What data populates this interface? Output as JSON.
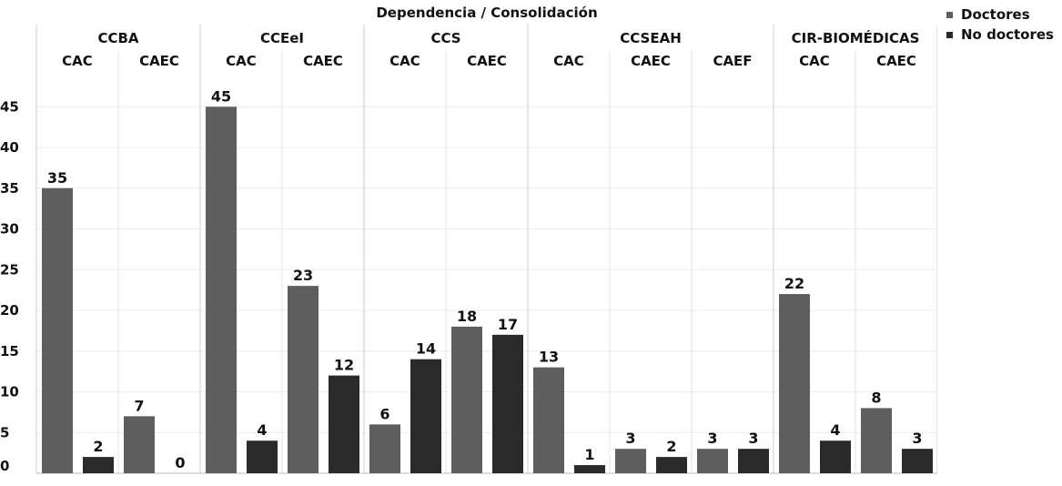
{
  "chart_data": {
    "type": "bar",
    "title": "Dependencia / Consolidación",
    "xlabel": "Dependencia / Consolidación",
    "ylabel": "",
    "ylim": [
      0,
      50
    ],
    "yticks": [
      0,
      5,
      10,
      15,
      20,
      25,
      30,
      35,
      40,
      45
    ],
    "groups": [
      {
        "name": "CCBA",
        "subgroups": [
          {
            "label": "CAC",
            "values": [
              35,
              2
            ]
          },
          {
            "label": "CAEC",
            "values": [
              7,
              0
            ]
          }
        ]
      },
      {
        "name": "CCEeI",
        "subgroups": [
          {
            "label": "CAC",
            "values": [
              45,
              4
            ]
          },
          {
            "label": "CAEC",
            "values": [
              23,
              12
            ]
          }
        ]
      },
      {
        "name": "CCS",
        "subgroups": [
          {
            "label": "CAC",
            "values": [
              6,
              14
            ]
          },
          {
            "label": "CAEC",
            "values": [
              18,
              17
            ]
          }
        ]
      },
      {
        "name": "CCSEAH",
        "subgroups": [
          {
            "label": "CAC",
            "values": [
              13,
              1
            ]
          },
          {
            "label": "CAEC",
            "values": [
              3,
              2
            ]
          },
          {
            "label": "CAEF",
            "values": [
              3,
              3
            ]
          }
        ]
      },
      {
        "name": "CIR-BIOMÉDICAS",
        "subgroups": [
          {
            "label": "CAC",
            "values": [
              22,
              4
            ]
          },
          {
            "label": "CAEC",
            "values": [
              8,
              3
            ]
          }
        ]
      }
    ],
    "series": [
      {
        "name": "Doctores",
        "color": "#5e5e5e"
      },
      {
        "name": "No doctores",
        "color": "#2a2a2a"
      }
    ],
    "legend_position": "top-right"
  }
}
